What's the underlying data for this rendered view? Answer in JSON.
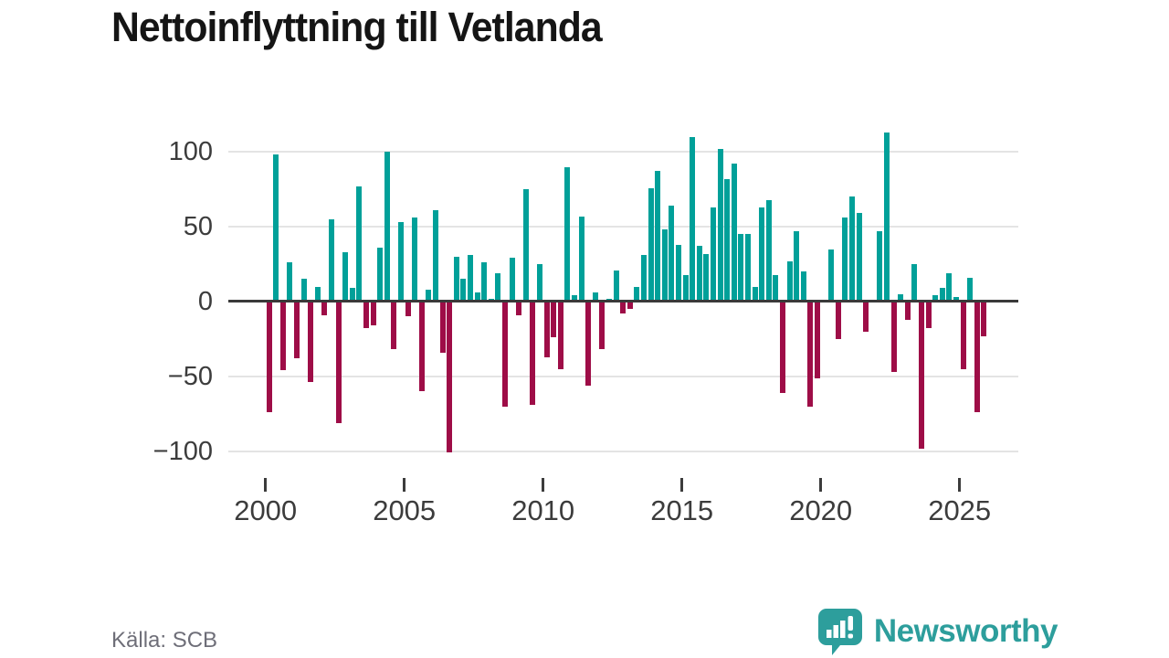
{
  "title": "Nettoinflyttning till Vetlanda",
  "source": "Källa: SCB",
  "logo": {
    "text": "Newsworthy"
  },
  "colors": {
    "positive": "#00a099",
    "negative": "#9e0d47",
    "grid": "#e4e4e4",
    "zero_line": "#3a3a3a",
    "axis_text": "#3c3c3c",
    "source_text": "#6e6e78",
    "logo": "#2d9e9c",
    "title": "#151515"
  },
  "chart_data": {
    "type": "bar",
    "title": "Nettoinflyttning till Vetlanda",
    "xlabel": "",
    "ylabel": "",
    "frequency": "quarterly",
    "start_year": 2000,
    "ylim": [
      -116,
      116
    ],
    "grid": "horizontal",
    "y_ticks": [
      100,
      50,
      0,
      -50,
      -100
    ],
    "y_tick_labels": [
      "100",
      "50",
      "0",
      "−50",
      "−100"
    ],
    "x_tick_years": [
      2000,
      2005,
      2010,
      2015,
      2020,
      2025
    ],
    "x_tick_labels": [
      "2000",
      "2005",
      "2010",
      "2015",
      "2020",
      "2025"
    ],
    "values": [
      -74,
      98,
      -46,
      26,
      -38,
      15,
      -54,
      10,
      -9,
      55,
      -81,
      33,
      9,
      77,
      -18,
      -16,
      36,
      100,
      -32,
      53,
      -10,
      56,
      -60,
      8,
      61,
      -34,
      -101,
      30,
      15,
      31,
      6,
      26,
      2,
      19,
      -70,
      29,
      -9,
      75,
      -69,
      25,
      -37,
      -24,
      -45,
      90,
      4,
      57,
      -56,
      6,
      -32,
      2,
      21,
      -8,
      -5,
      10,
      31,
      76,
      87,
      48,
      64,
      38,
      18,
      110,
      37,
      32,
      63,
      102,
      82,
      92,
      45,
      45,
      10,
      63,
      68,
      18,
      -61,
      27,
      47,
      20,
      -70,
      -51,
      0,
      35,
      -25,
      56,
      70,
      59,
      -20,
      0,
      47,
      113,
      -47,
      5,
      -12,
      25,
      -98,
      -18,
      4,
      9,
      19,
      3,
      -45,
      16,
      -74,
      -23
    ]
  }
}
